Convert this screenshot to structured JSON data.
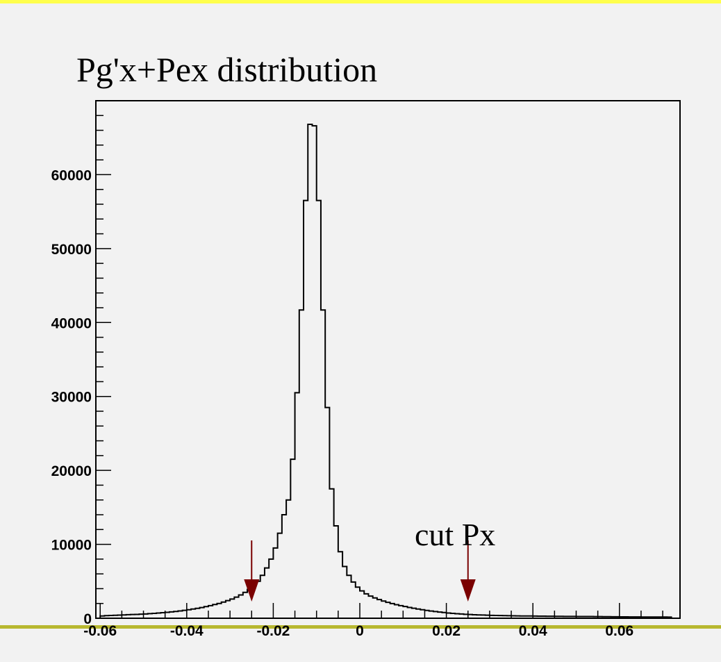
{
  "colors": {
    "background": "#f2f2f2",
    "top_border": "#ffff4c",
    "bottom_border": "#b8b830",
    "line": "#000000",
    "arrow": "#7a0000"
  },
  "chart_data": {
    "type": "histogram",
    "title": "Pg'x+Pex distribution",
    "xlabel": "",
    "ylabel": "",
    "xlim": [
      -0.061,
      0.074
    ],
    "ylim": [
      0,
      70000
    ],
    "grid": false,
    "x_tick_labels": [
      "-0.06",
      "-0.04",
      "-0.02",
      "0",
      "0.02",
      "0.04",
      "0.06"
    ],
    "y_tick_labels": [
      "0",
      "10000",
      "20000",
      "30000",
      "40000",
      "50000",
      "60000"
    ],
    "bin_edges_start": -0.06,
    "bin_width": 0.001,
    "values": [
      300,
      350,
      380,
      400,
      420,
      450,
      480,
      500,
      520,
      550,
      580,
      620,
      660,
      700,
      750,
      800,
      860,
      920,
      990,
      1070,
      1150,
      1240,
      1340,
      1450,
      1570,
      1700,
      1850,
      2000,
      2180,
      2380,
      2600,
      2850,
      3150,
      3500,
      3900,
      4400,
      5000,
      5800,
      6800,
      8000,
      9500,
      11500,
      14000,
      16000,
      21500,
      30500,
      41700,
      56500,
      66800,
      66600,
      56500,
      41700,
      28500,
      17500,
      12500,
      9000,
      7000,
      5800,
      4900,
      4200,
      3700,
      3300,
      3000,
      2750,
      2520,
      2320,
      2150,
      1980,
      1830,
      1700,
      1580,
      1460,
      1350,
      1250,
      1150,
      1060,
      980,
      900,
      830,
      770,
      710,
      660,
      610,
      570,
      530,
      500,
      470,
      450,
      430,
      410,
      390,
      370,
      360,
      350,
      340,
      330,
      320,
      310,
      300,
      300,
      290,
      280,
      280,
      270,
      270,
      260,
      260,
      250,
      250,
      250,
      240,
      240,
      230,
      230,
      220,
      220,
      210,
      210,
      200,
      200,
      190,
      190,
      180,
      180,
      180,
      170,
      170,
      170,
      160,
      160,
      160,
      150
    ],
    "annotations": [
      {
        "text": "cut Px"
      }
    ],
    "cut_markers": [
      -0.025,
      0.025
    ]
  }
}
